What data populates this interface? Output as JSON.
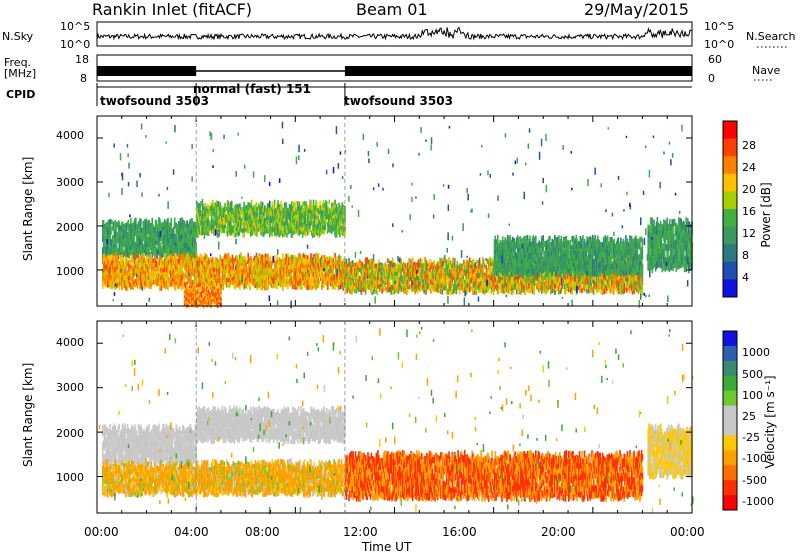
{
  "header": {
    "title": "Rankin Inlet (fitACF)",
    "beam": "Beam 01",
    "date": "29/May/2015"
  },
  "upper": {
    "left_labels": [
      "N.Sky",
      "Freq.",
      "[MHz]",
      "CPID"
    ],
    "right_labels": [
      "N.Search",
      "Nave"
    ],
    "nsky_ticks": [
      "10^5",
      "10^0"
    ],
    "nsearch_ticks": [
      "10^5",
      "10^0"
    ],
    "freq_ticks": [
      "18",
      "8"
    ],
    "nave_ticks": [
      "60",
      "0"
    ],
    "cpid_segments": [
      {
        "start_hour": 0,
        "end_hour": 4,
        "label": "twofsound 3503"
      },
      {
        "start_hour": 4,
        "end_hour": 10,
        "label": "normal (fast) 151"
      },
      {
        "start_hour": 10,
        "end_hour": 24,
        "label": "twofsound 3503"
      }
    ]
  },
  "power_colorbar": {
    "label": "Power [dB]",
    "ticks": [
      "28",
      "24",
      "20",
      "16",
      "12",
      "8",
      "4"
    ],
    "colors": [
      "#ff0000",
      "#ff4000",
      "#ff8000",
      "#ffc000",
      "#a8d000",
      "#40b040",
      "#3a9a60",
      "#2d7a80",
      "#1f4fb0",
      "#1010e0"
    ]
  },
  "velocity_colorbar": {
    "label": "Velocity [m s⁻¹]",
    "ticks": [
      "1000",
      "500",
      "100",
      "25",
      "-25",
      "-100",
      "-500",
      "-1000"
    ],
    "colors": [
      "#1010e0",
      "#2d5fb0",
      "#3a8a70",
      "#3aaa3a",
      "#70c830",
      "#c8c8c8",
      "#c8c8c8",
      "#ffc800",
      "#ffa000",
      "#ff7000",
      "#ff3000",
      "#ff0000"
    ]
  },
  "chart_data": [
    {
      "type": "heatmap",
      "panel": "power",
      "ylabel": "Slant Range [km]",
      "ylim": [
        180,
        4500
      ],
      "yticks": [
        1000,
        2000,
        3000,
        4000
      ],
      "xlim": [
        0,
        24
      ],
      "bands": [
        {
          "start_hour": 0.2,
          "end_hour": 4.0,
          "range_km": [
            1300,
            2100
          ],
          "power_db": [
            8,
            16
          ]
        },
        {
          "start_hour": 4.0,
          "end_hour": 10.0,
          "range_km": [
            1800,
            2500
          ],
          "power_db": [
            10,
            20
          ]
        },
        {
          "start_hour": 0.2,
          "end_hour": 10.0,
          "range_km": [
            600,
            1300
          ],
          "power_db": [
            16,
            28
          ]
        },
        {
          "start_hour": 3.5,
          "end_hour": 5.0,
          "range_km": [
            200,
            600
          ],
          "power_db": [
            20,
            28
          ]
        },
        {
          "start_hour": 10.0,
          "end_hour": 22.0,
          "range_km": [
            500,
            1200
          ],
          "power_db": [
            12,
            28
          ]
        },
        {
          "start_hour": 16.0,
          "end_hour": 22.0,
          "range_km": [
            900,
            1700
          ],
          "power_db": [
            8,
            16
          ]
        },
        {
          "start_hour": 22.2,
          "end_hour": 24.0,
          "range_km": [
            1000,
            2100
          ],
          "power_db": [
            8,
            16
          ]
        }
      ]
    },
    {
      "type": "heatmap",
      "panel": "velocity",
      "xlabel": "Time UT",
      "ylabel": "Slant Range [km]",
      "ylim": [
        180,
        4500
      ],
      "yticks": [
        1000,
        2000,
        3000,
        4000
      ],
      "xlim": [
        0,
        24
      ],
      "xticks": [
        "00:00",
        "04:00",
        "08:00",
        "12:00",
        "16:00",
        "20:00",
        "00:00"
      ],
      "bands": [
        {
          "start_hour": 0.2,
          "end_hour": 4.0,
          "range_km": [
            1300,
            2100
          ],
          "velocity_ms": [
            -25,
            25
          ]
        },
        {
          "start_hour": 4.0,
          "end_hour": 10.0,
          "range_km": [
            1800,
            2500
          ],
          "velocity_ms": [
            -25,
            25
          ]
        },
        {
          "start_hour": 0.2,
          "end_hour": 10.0,
          "range_km": [
            600,
            1300
          ],
          "velocity_ms": [
            -500,
            100
          ]
        },
        {
          "start_hour": 10.0,
          "end_hour": 22.0,
          "range_km": [
            500,
            1500
          ],
          "velocity_ms": [
            -1000,
            -100
          ]
        },
        {
          "start_hour": 22.2,
          "end_hour": 24.0,
          "range_km": [
            1000,
            2100
          ],
          "velocity_ms": [
            -100,
            25
          ]
        }
      ]
    }
  ],
  "dashed_marks_hour": [
    4,
    10
  ]
}
